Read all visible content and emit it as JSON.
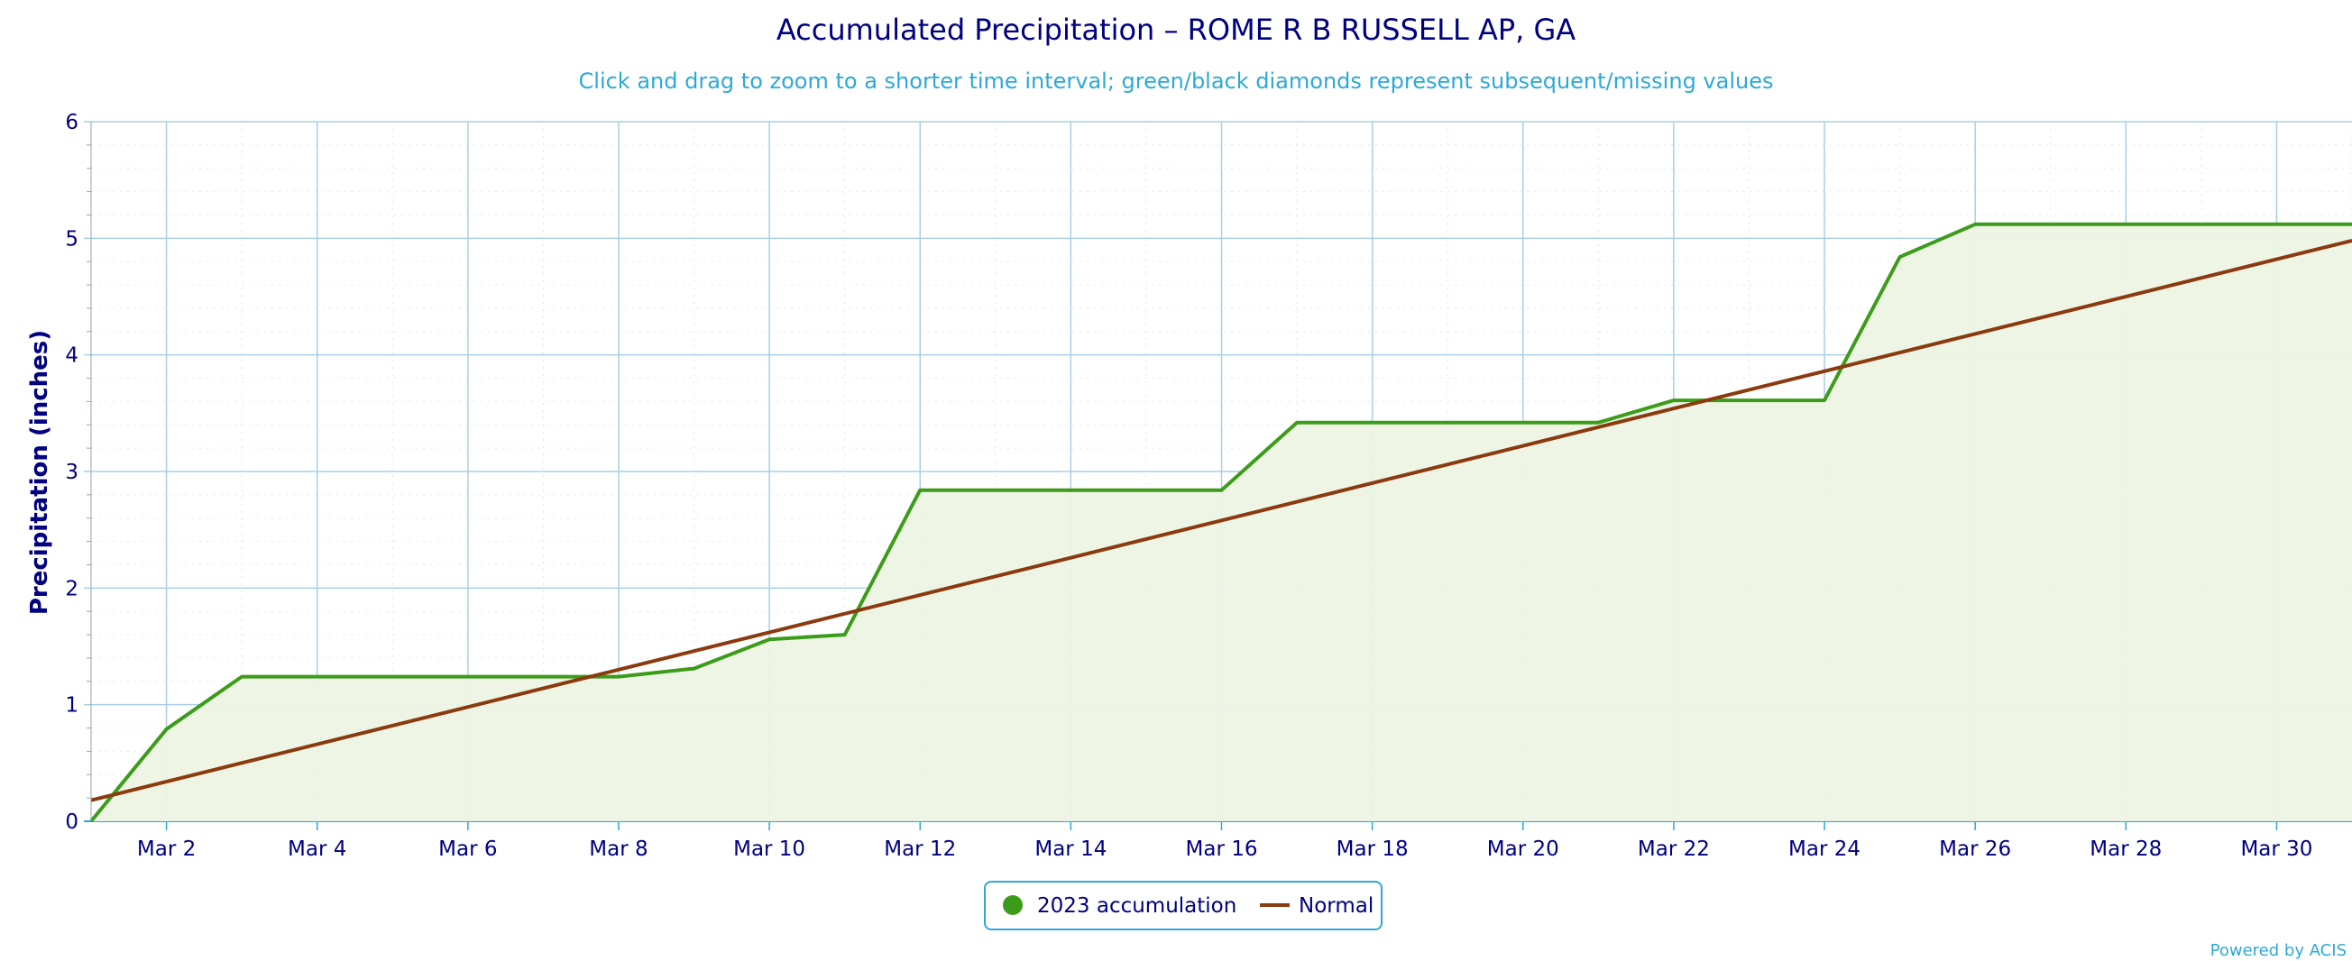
{
  "chart_data": {
    "type": "area",
    "title": "Accumulated Precipitation – ROME R B RUSSELL AP, GA",
    "subtitle": "Click and drag to zoom to a shorter time interval; green/black diamonds represent subsequent/missing values",
    "xlabel": "",
    "ylabel": "Precipitation (inches)",
    "ylim": [
      0,
      6
    ],
    "yticks": [
      "0",
      "1",
      "2",
      "3",
      "4",
      "5",
      "6"
    ],
    "xlim": [
      1,
      31
    ],
    "xticks": [
      {
        "day": 2,
        "label": "Mar 2"
      },
      {
        "day": 4,
        "label": "Mar 4"
      },
      {
        "day": 6,
        "label": "Mar 6"
      },
      {
        "day": 8,
        "label": "Mar 8"
      },
      {
        "day": 10,
        "label": "Mar 10"
      },
      {
        "day": 12,
        "label": "Mar 12"
      },
      {
        "day": 14,
        "label": "Mar 14"
      },
      {
        "day": 16,
        "label": "Mar 16"
      },
      {
        "day": 18,
        "label": "Mar 18"
      },
      {
        "day": 20,
        "label": "Mar 20"
      },
      {
        "day": 22,
        "label": "Mar 22"
      },
      {
        "day": 24,
        "label": "Mar 24"
      },
      {
        "day": 26,
        "label": "Mar 26"
      },
      {
        "day": 28,
        "label": "Mar 28"
      },
      {
        "day": 30,
        "label": "Mar 30"
      }
    ],
    "grid": true,
    "legend_position": "bottom-center",
    "series": [
      {
        "name": "2023 accumulation",
        "type": "area",
        "color": "#3c9c1a",
        "fill": "#edf4e4",
        "x": [
          1,
          2,
          3,
          4,
          5,
          6,
          7,
          8,
          9,
          10,
          11,
          12,
          13,
          14,
          15,
          16,
          17,
          18,
          19,
          20,
          21,
          22,
          23,
          24,
          25,
          26,
          27,
          28,
          29,
          30,
          31
        ],
        "y": [
          0.0,
          0.79,
          1.24,
          1.24,
          1.24,
          1.24,
          1.24,
          1.24,
          1.31,
          1.56,
          1.6,
          2.84,
          2.84,
          2.84,
          2.84,
          2.84,
          3.42,
          3.42,
          3.42,
          3.42,
          3.42,
          3.61,
          3.61,
          3.61,
          4.84,
          5.12,
          5.12,
          5.12,
          5.12,
          5.12,
          5.12
        ]
      },
      {
        "name": "Normal",
        "type": "line",
        "color": "#8b3a0e",
        "x": [
          1,
          31
        ],
        "y": [
          0.18,
          4.98
        ]
      }
    ]
  },
  "credit": "Powered by ACIS"
}
